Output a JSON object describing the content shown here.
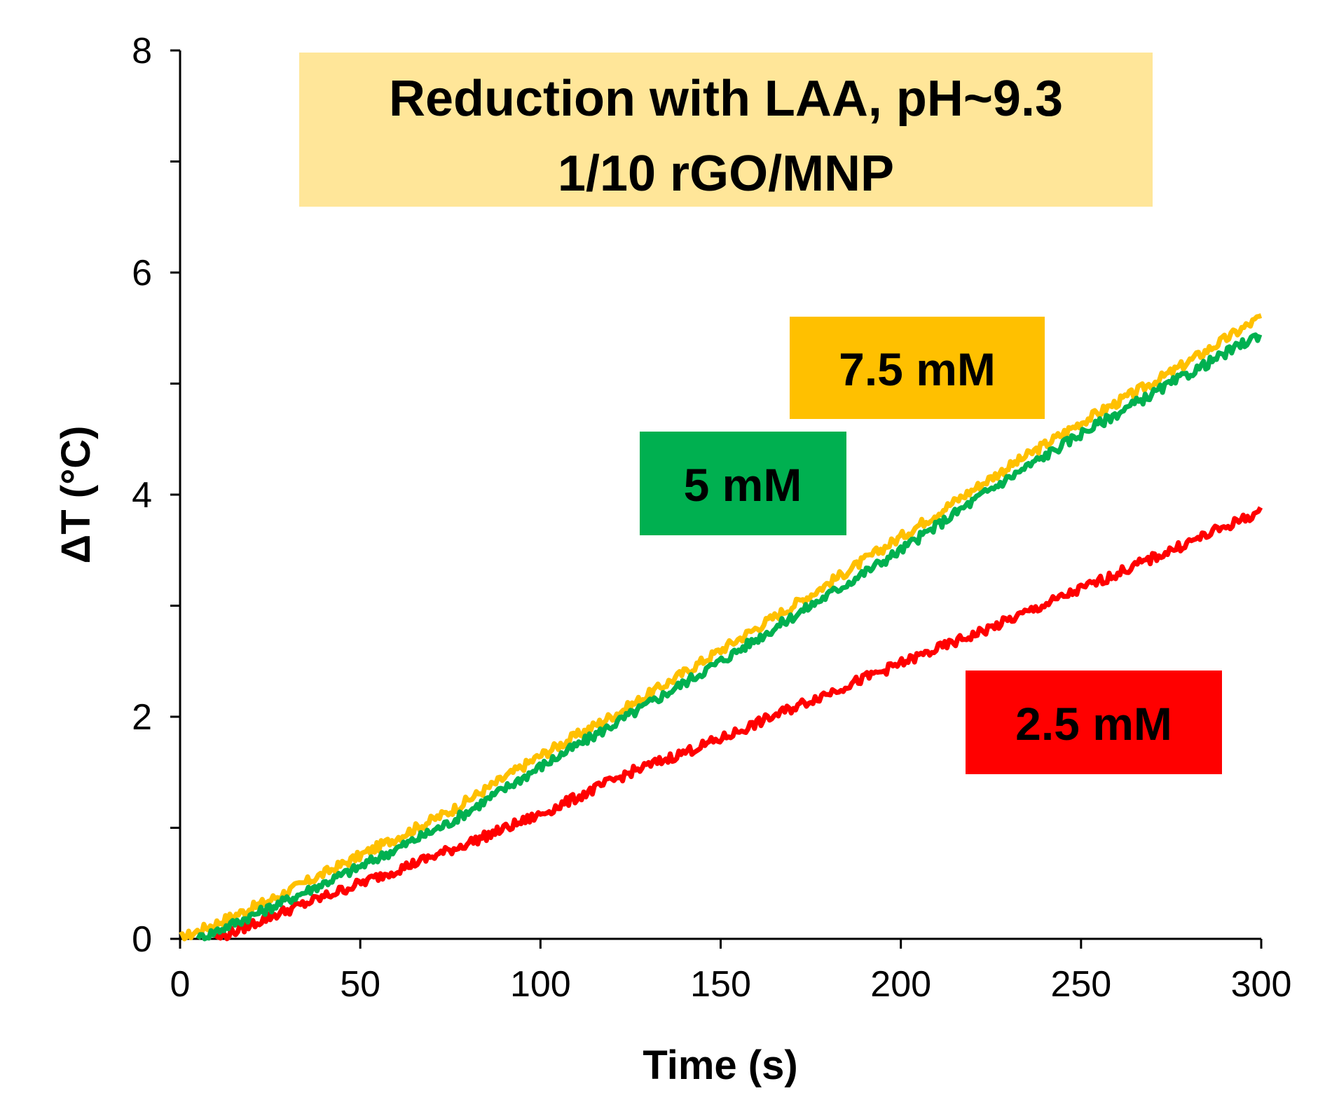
{
  "chart_data": {
    "type": "line",
    "title_lines": [
      "Reduction with LAA, pH~9.3",
      "1/10 rGO/MNP"
    ],
    "xlabel": "Time (s)",
    "ylabel": "ΔT (°C)",
    "xlim": [
      0,
      300
    ],
    "ylim": [
      0,
      8
    ],
    "xticks": [
      0,
      50,
      100,
      150,
      200,
      250,
      300
    ],
    "yticks": [
      0,
      2,
      4,
      6,
      8
    ],
    "y_minor_ticks": [
      1,
      3,
      5,
      7
    ],
    "grid": false,
    "series": [
      {
        "name": "7.5 mM",
        "color": "#FFC000",
        "x": [
          0,
          25,
          50,
          75,
          100,
          125,
          150,
          175,
          200,
          225,
          250,
          275,
          300
        ],
        "y": [
          0.0,
          0.35,
          0.75,
          1.15,
          1.65,
          2.1,
          2.6,
          3.1,
          3.62,
          4.15,
          4.65,
          5.1,
          5.6
        ]
      },
      {
        "name": "5 mM",
        "color": "#00B050",
        "x": [
          5,
          25,
          50,
          75,
          100,
          125,
          150,
          175,
          200,
          225,
          250,
          275,
          300
        ],
        "y": [
          0.0,
          0.28,
          0.65,
          1.05,
          1.55,
          2.02,
          2.5,
          3.0,
          3.5,
          4.05,
          4.55,
          5.0,
          5.45
        ]
      },
      {
        "name": "2.5 mM",
        "color": "#FF0000",
        "x": [
          10,
          25,
          50,
          75,
          100,
          125,
          150,
          175,
          200,
          225,
          250,
          275,
          300
        ],
        "y": [
          0.0,
          0.2,
          0.5,
          0.8,
          1.12,
          1.5,
          1.8,
          2.15,
          2.48,
          2.8,
          3.15,
          3.5,
          3.85
        ]
      }
    ],
    "colors": {
      "title_box": "#FFE699",
      "label_7_5": "#FFC000",
      "label_5": "#00B050",
      "label_2_5": "#FF0000"
    }
  }
}
